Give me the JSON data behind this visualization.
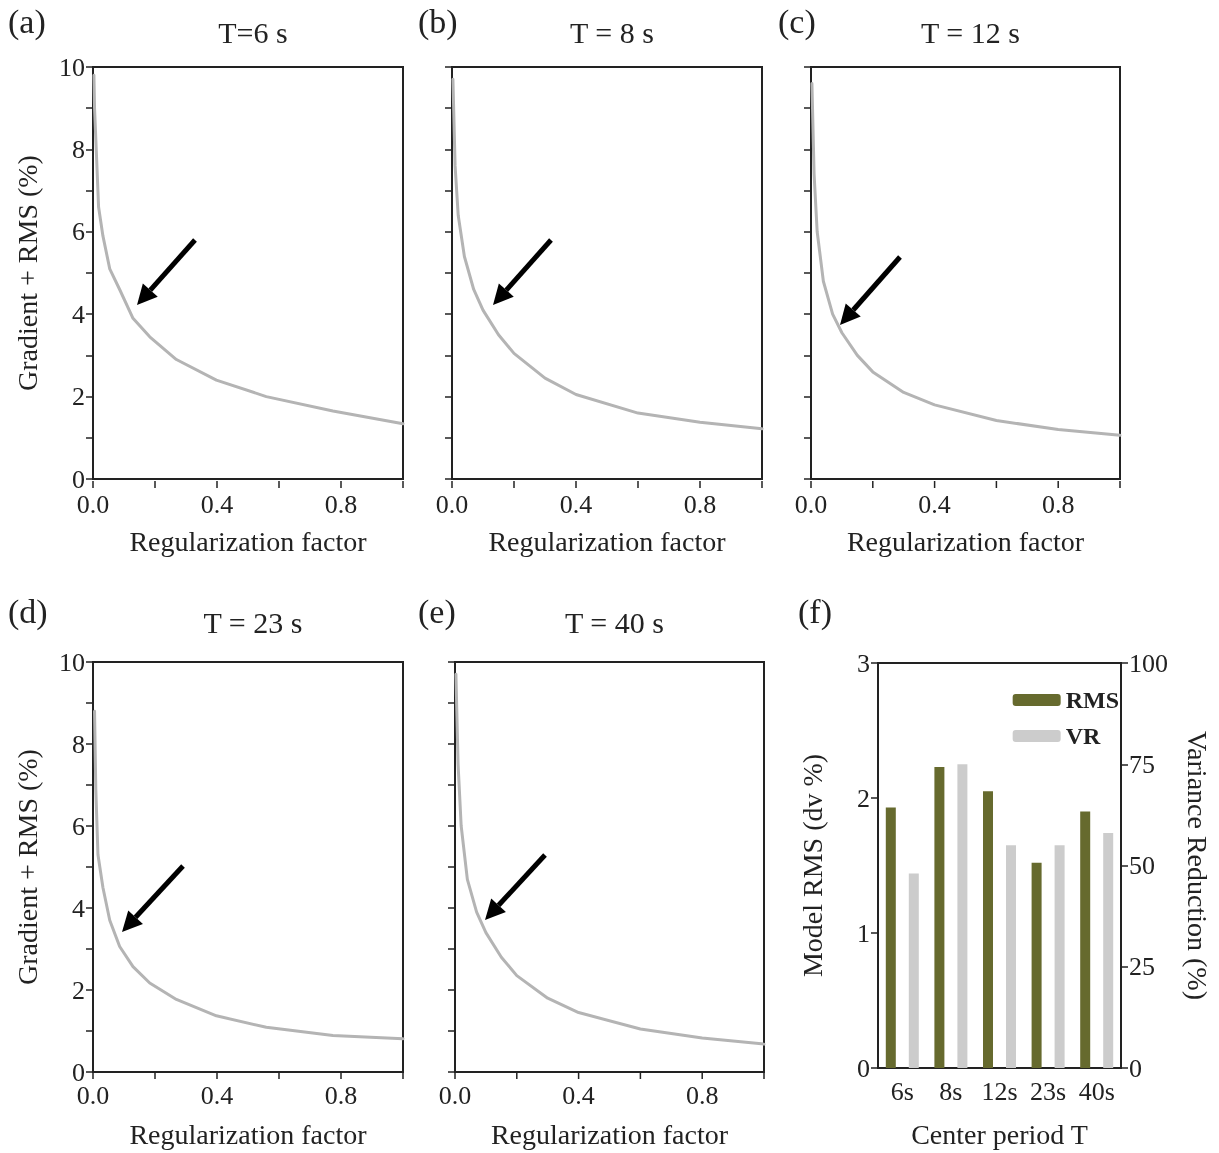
{
  "chart_data": [
    {
      "type": "line",
      "title": "T=6 s",
      "annotations": [
        "(a)"
      ],
      "xlabel": "Regularization factor",
      "ylabel": "Gradient + RMS (%)",
      "marker": "none",
      "xlim": [
        0,
        1
      ],
      "ylim": [
        0,
        10
      ],
      "xticks": [
        {
          "value": 0,
          "label": "0.0"
        },
        {
          "value": 0.2,
          "label": null
        },
        {
          "value": 0.4,
          "label": "0.4"
        },
        {
          "value": 0.6,
          "label": null
        },
        {
          "value": 0.8,
          "label": "0.8"
        },
        {
          "value": 1,
          "label": null
        }
      ],
      "yticks": [
        0,
        {
          "value": 1,
          "label": null
        },
        2,
        {
          "value": 3,
          "label": null
        },
        4,
        {
          "value": 5,
          "label": null
        },
        6,
        {
          "value": 7,
          "label": null
        },
        8,
        {
          "value": 9,
          "label": null
        },
        10
      ],
      "series": [
        {
          "color": "#b4b4b4",
          "x": [
            0.003,
            0.005,
            0.011,
            0.018,
            0.032,
            0.054,
            0.086,
            0.129,
            0.183,
            0.269,
            0.398,
            0.559,
            0.774,
            1.0
          ],
          "values": [
            9.8,
            9.0,
            7.9,
            6.6,
            5.9,
            5.1,
            4.6,
            3.9,
            3.45,
            2.9,
            2.4,
            2.0,
            1.65,
            1.34
          ]
        }
      ]
    },
    {
      "type": "line",
      "title": "T = 8 s",
      "annotations": [
        "(b)"
      ],
      "xlabel": "Regularization factor",
      "marker": "none",
      "tick_labels": "x",
      "xlim": [
        0,
        1
      ],
      "ylim": [
        0,
        10
      ],
      "xticks": [
        {
          "value": 0,
          "label": "0.0"
        },
        {
          "value": 0.2,
          "label": null
        },
        {
          "value": 0.4,
          "label": "0.4"
        },
        {
          "value": 0.6,
          "label": null
        },
        {
          "value": 0.8,
          "label": "0.8"
        },
        {
          "value": 1,
          "label": null
        }
      ],
      "yticks": [
        0,
        {
          "value": 1,
          "label": null
        },
        2,
        {
          "value": 3,
          "label": null
        },
        4,
        {
          "value": 5,
          "label": null
        },
        6,
        {
          "value": 7,
          "label": null
        },
        8,
        {
          "value": 9,
          "label": null
        },
        10
      ],
      "series": [
        {
          "color": "#b4b4b4",
          "x": [
            0.003,
            0.01,
            0.02,
            0.04,
            0.07,
            0.1,
            0.15,
            0.2,
            0.3,
            0.4,
            0.6,
            0.8,
            1.0
          ],
          "values": [
            9.7,
            7.6,
            6.4,
            5.4,
            4.6,
            4.1,
            3.5,
            3.05,
            2.45,
            2.05,
            1.6,
            1.38,
            1.22
          ]
        }
      ]
    },
    {
      "type": "line",
      "title": "T = 12 s",
      "annotations": [
        "(c)"
      ],
      "xlabel": "Regularization factor",
      "marker": "none",
      "tick_labels": "x",
      "xlim": [
        0,
        1
      ],
      "ylim": [
        0,
        10
      ],
      "xticks": [
        {
          "value": 0,
          "label": "0.0"
        },
        {
          "value": 0.2,
          "label": null
        },
        {
          "value": 0.4,
          "label": "0.4"
        },
        {
          "value": 0.6,
          "label": null
        },
        {
          "value": 0.8,
          "label": "0.8"
        },
        {
          "value": 1,
          "label": null
        }
      ],
      "yticks": [
        0,
        {
          "value": 1,
          "label": null
        },
        2,
        {
          "value": 3,
          "label": null
        },
        4,
        {
          "value": 5,
          "label": null
        },
        6,
        {
          "value": 7,
          "label": null
        },
        8,
        {
          "value": 9,
          "label": null
        },
        10
      ],
      "series": [
        {
          "color": "#b4b4b4",
          "x": [
            0.003,
            0.01,
            0.02,
            0.04,
            0.07,
            0.1,
            0.15,
            0.2,
            0.3,
            0.4,
            0.6,
            0.8,
            1.0
          ],
          "values": [
            9.6,
            7.4,
            6.0,
            4.8,
            4.0,
            3.55,
            3.0,
            2.6,
            2.1,
            1.8,
            1.42,
            1.2,
            1.06
          ]
        }
      ]
    },
    {
      "type": "line",
      "title": "T = 23 s",
      "annotations": [
        "(d)"
      ],
      "xlabel": "Regularization factor",
      "ylabel": "Gradient + RMS (%)",
      "marker": "none",
      "xlim": [
        0,
        1
      ],
      "ylim": [
        0,
        10
      ],
      "xticks": [
        {
          "value": 0,
          "label": "0.0"
        },
        {
          "value": 0.2,
          "label": null
        },
        {
          "value": 0.4,
          "label": "0.4"
        },
        {
          "value": 0.6,
          "label": null
        },
        {
          "value": 0.8,
          "label": "0.8"
        },
        {
          "value": 1,
          "label": null
        }
      ],
      "yticks": [
        0,
        {
          "value": 1,
          "label": null
        },
        2,
        {
          "value": 3,
          "label": null
        },
        4,
        {
          "value": 5,
          "label": null
        },
        6,
        {
          "value": 7,
          "label": null
        },
        8,
        {
          "value": 9,
          "label": null
        },
        10
      ],
      "series": [
        {
          "color": "#b4b4b4",
          "x": [
            0.005,
            0.009,
            0.016,
            0.022,
            0.032,
            0.054,
            0.086,
            0.129,
            0.183,
            0.269,
            0.398,
            0.559,
            0.774,
            1.0
          ],
          "values": [
            8.8,
            6.9,
            5.3,
            5.0,
            4.5,
            3.7,
            3.06,
            2.57,
            2.17,
            1.77,
            1.37,
            1.09,
            0.89,
            0.81
          ]
        }
      ]
    },
    {
      "type": "line",
      "title": "T = 40 s",
      "annotations": [
        "(e)"
      ],
      "xlabel": "Regularization factor",
      "marker": "none",
      "tick_labels": "x",
      "xlim": [
        0,
        1
      ],
      "ylim": [
        0,
        10
      ],
      "xticks": [
        {
          "value": 0,
          "label": "0.0"
        },
        {
          "value": 0.2,
          "label": null
        },
        {
          "value": 0.4,
          "label": "0.4"
        },
        {
          "value": 0.6,
          "label": null
        },
        {
          "value": 0.8,
          "label": "0.8"
        },
        {
          "value": 1,
          "label": null
        }
      ],
      "yticks": [
        0,
        {
          "value": 1,
          "label": null
        },
        2,
        {
          "value": 3,
          "label": null
        },
        4,
        {
          "value": 5,
          "label": null
        },
        6,
        {
          "value": 7,
          "label": null
        },
        8,
        {
          "value": 9,
          "label": null
        },
        10
      ],
      "series": [
        {
          "color": "#b4b4b4",
          "x": [
            0.003,
            0.01,
            0.02,
            0.04,
            0.07,
            0.1,
            0.15,
            0.2,
            0.3,
            0.4,
            0.6,
            0.8,
            1.0
          ],
          "values": [
            9.7,
            7.5,
            6.0,
            4.7,
            3.9,
            3.4,
            2.8,
            2.35,
            1.8,
            1.45,
            1.05,
            0.83,
            0.68
          ]
        }
      ]
    },
    {
      "type": "bar",
      "annotations": [
        "(f)"
      ],
      "xlabel": "Center period T",
      "ylabel": "Model RMS (dv %)",
      "y2label": "Variance Reduction (%)",
      "legend": "top right",
      "categories": [
        "6s",
        "8s",
        "12s",
        "23s",
        "40s"
      ],
      "ylim": [
        0,
        3
      ],
      "yticks": [
        0,
        1,
        2,
        3
      ],
      "y2lim": [
        0,
        100
      ],
      "y2ticks": [
        0,
        25,
        50,
        75,
        100
      ],
      "series": [
        {
          "name": "RMS",
          "color": "#666a2e",
          "values": [
            1.93,
            2.23,
            2.05,
            1.52,
            1.9
          ]
        },
        {
          "name": "VR",
          "color": "#cccccc",
          "axis": "y2",
          "values": [
            48,
            75,
            55,
            55,
            58
          ]
        }
      ]
    }
  ]
}
